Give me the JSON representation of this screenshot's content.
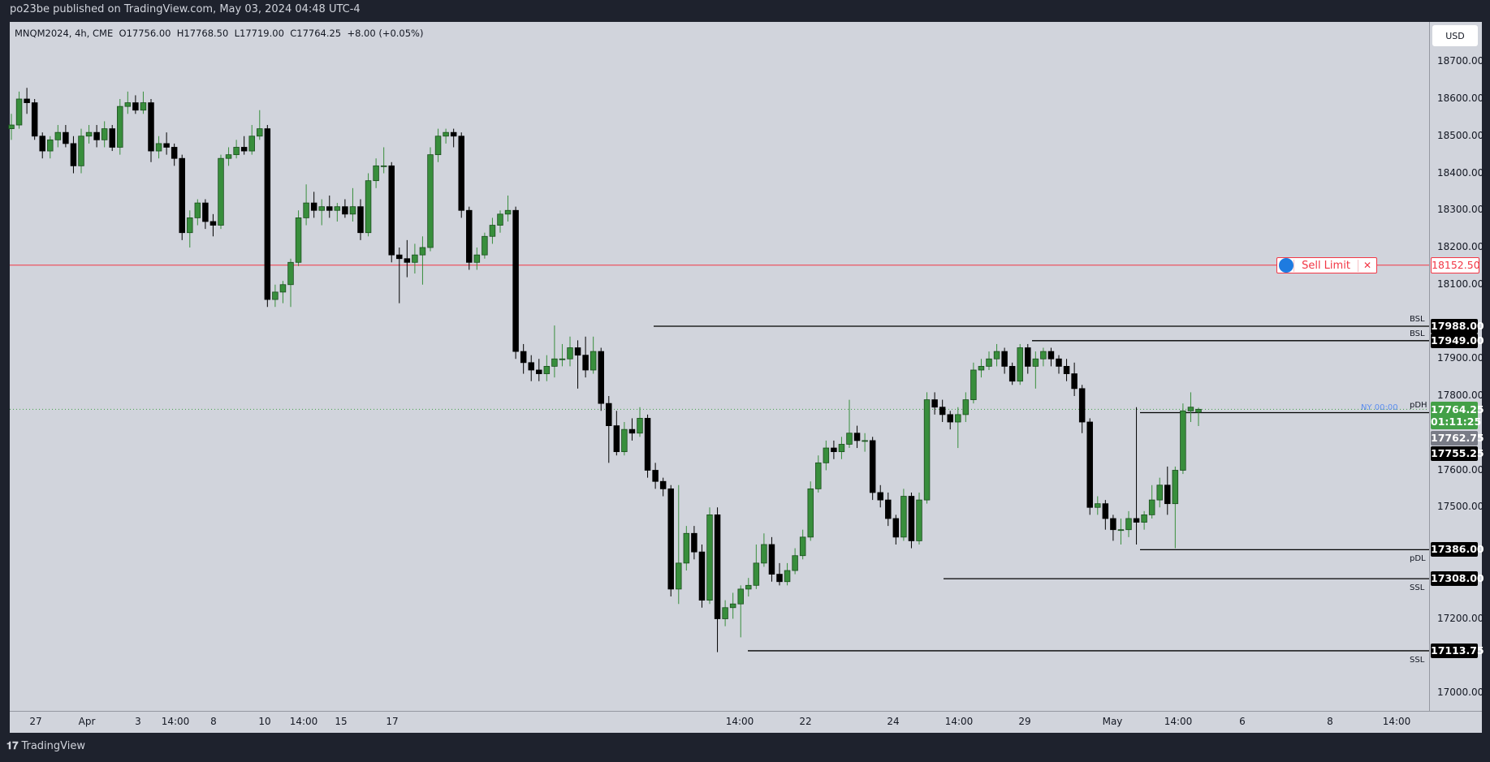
{
  "header": {
    "published": "po23be published on TradingView.com, May 03, 2024 04:48 UTC-4"
  },
  "legend": {
    "symbol": "MNQM2024, 4h, CME",
    "open": "O17756.00",
    "high": "H17768.50",
    "low": "L17719.00",
    "close": "C17764.25",
    "change": "+8.00 (+0.05%)"
  },
  "currency": "USD",
  "order": {
    "label": "Sell Limit",
    "price": "18152.50",
    "close_glyph": "✕",
    "color": "#f23645"
  },
  "badges": {
    "last": "17764.25",
    "countdown": "01:11:25",
    "gray": "17762.75",
    "pdh": "17755.25"
  },
  "annotation": {
    "ny": "NY 00:00"
  },
  "footer": {
    "brand": "TradingView"
  },
  "colors": {
    "up": "#388e3c",
    "down": "#000000",
    "background": "#d1d4dc",
    "order": "#f23645",
    "current": "#43a047"
  },
  "chart_data": {
    "type": "candlestick",
    "symbol": "MNQM2024",
    "interval": "4h",
    "ylim": [
      16950,
      18780
    ],
    "y_ticks": [
      "18700.00",
      "18600.00",
      "18500.00",
      "18400.00",
      "18300.00",
      "18200.00",
      "18100.00",
      "17900.00",
      "17800.00",
      "17600.00",
      "17500.00",
      "17200.00",
      "17000.00"
    ],
    "x_ticks": [
      "27",
      "Apr",
      "3",
      "14:00",
      "8",
      "10",
      "14:00",
      "15",
      "17",
      "14:00",
      "22",
      "24",
      "14:00",
      "29",
      "May",
      "14:00",
      "6",
      "8",
      "14:00"
    ],
    "levels": [
      {
        "label": "BSL",
        "price": 17988.0,
        "text": "17988.00"
      },
      {
        "label": "BSL",
        "price": 17949.0,
        "text": "17949.00"
      },
      {
        "label": "pDH",
        "price": 17755.25,
        "text": "17755.25"
      },
      {
        "label": "pDL",
        "price": 17386.0,
        "text": "17386.00"
      },
      {
        "label": "SSL",
        "price": 17308.0,
        "text": "17308.00"
      },
      {
        "label": "SSL",
        "price": 17113.75,
        "text": "17113.75"
      }
    ],
    "sell_limit": 18152.5,
    "last_price": 17764.25,
    "candles": [
      [
        18520,
        18560,
        18490,
        18530
      ],
      [
        18530,
        18620,
        18520,
        18600
      ],
      [
        18600,
        18630,
        18560,
        18590
      ],
      [
        18590,
        18600,
        18490,
        18500
      ],
      [
        18500,
        18510,
        18440,
        18460
      ],
      [
        18460,
        18500,
        18440,
        18490
      ],
      [
        18490,
        18530,
        18470,
        18510
      ],
      [
        18510,
        18530,
        18470,
        18480
      ],
      [
        18480,
        18500,
        18400,
        18420
      ],
      [
        18420,
        18520,
        18400,
        18500
      ],
      [
        18500,
        18530,
        18480,
        18510
      ],
      [
        18510,
        18530,
        18470,
        18490
      ],
      [
        18490,
        18540,
        18470,
        18520
      ],
      [
        18520,
        18530,
        18460,
        18470
      ],
      [
        18470,
        18600,
        18450,
        18580
      ],
      [
        18580,
        18620,
        18560,
        18590
      ],
      [
        18590,
        18610,
        18560,
        18570
      ],
      [
        18570,
        18620,
        18560,
        18590
      ],
      [
        18590,
        18600,
        18430,
        18460
      ],
      [
        18460,
        18500,
        18440,
        18480
      ],
      [
        18480,
        18510,
        18450,
        18470
      ],
      [
        18470,
        18480,
        18420,
        18440
      ],
      [
        18440,
        18450,
        18220,
        18240
      ],
      [
        18240,
        18300,
        18200,
        18280
      ],
      [
        18280,
        18330,
        18260,
        18320
      ],
      [
        18320,
        18330,
        18250,
        18270
      ],
      [
        18270,
        18290,
        18230,
        18260
      ],
      [
        18260,
        18450,
        18250,
        18440
      ],
      [
        18440,
        18470,
        18420,
        18450
      ],
      [
        18450,
        18490,
        18440,
        18470
      ],
      [
        18470,
        18500,
        18450,
        18460
      ],
      [
        18460,
        18530,
        18450,
        18500
      ],
      [
        18500,
        18570,
        18490,
        18520
      ],
      [
        18520,
        18530,
        18040,
        18060
      ],
      [
        18060,
        18100,
        18040,
        18080
      ],
      [
        18080,
        18110,
        18050,
        18100
      ],
      [
        18100,
        18170,
        18040,
        18160
      ],
      [
        18160,
        18300,
        18150,
        18280
      ],
      [
        18280,
        18370,
        18260,
        18320
      ],
      [
        18320,
        18350,
        18280,
        18300
      ],
      [
        18300,
        18330,
        18260,
        18310
      ],
      [
        18310,
        18340,
        18280,
        18300
      ],
      [
        18300,
        18320,
        18270,
        18310
      ],
      [
        18310,
        18330,
        18280,
        18290
      ],
      [
        18290,
        18360,
        18270,
        18310
      ],
      [
        18310,
        18330,
        18220,
        18240
      ],
      [
        18240,
        18400,
        18230,
        18380
      ],
      [
        18380,
        18440,
        18360,
        18420
      ],
      [
        18420,
        18470,
        18400,
        18420
      ],
      [
        18420,
        18430,
        18160,
        18180
      ],
      [
        18180,
        18200,
        18050,
        18170
      ],
      [
        18170,
        18220,
        18120,
        18160
      ],
      [
        18160,
        18210,
        18130,
        18180
      ],
      [
        18180,
        18230,
        18100,
        18200
      ],
      [
        18200,
        18470,
        18190,
        18450
      ],
      [
        18450,
        18520,
        18430,
        18500
      ],
      [
        18500,
        18520,
        18480,
        18510
      ],
      [
        18510,
        18520,
        18470,
        18500
      ],
      [
        18500,
        18510,
        18280,
        18300
      ],
      [
        18300,
        18310,
        18140,
        18160
      ],
      [
        18160,
        18200,
        18140,
        18180
      ],
      [
        18180,
        18240,
        18170,
        18230
      ],
      [
        18230,
        18280,
        18210,
        18260
      ],
      [
        18260,
        18300,
        18240,
        18290
      ],
      [
        18290,
        18340,
        18270,
        18300
      ],
      [
        18300,
        18310,
        17900,
        17920
      ],
      [
        17920,
        17940,
        17860,
        17890
      ],
      [
        17890,
        17910,
        17840,
        17870
      ],
      [
        17870,
        17900,
        17840,
        17860
      ],
      [
        17860,
        17910,
        17840,
        17880
      ],
      [
        17880,
        17990,
        17850,
        17900
      ],
      [
        17900,
        17940,
        17880,
        17900
      ],
      [
        17900,
        17960,
        17880,
        17930
      ],
      [
        17930,
        17950,
        17820,
        17910
      ],
      [
        17910,
        17960,
        17850,
        17870
      ],
      [
        17870,
        17960,
        17860,
        17920
      ],
      [
        17920,
        17930,
        17760,
        17780
      ],
      [
        17780,
        17800,
        17620,
        17720
      ],
      [
        17720,
        17760,
        17640,
        17650
      ],
      [
        17650,
        17730,
        17640,
        17710
      ],
      [
        17710,
        17740,
        17680,
        17700
      ],
      [
        17700,
        17770,
        17690,
        17740
      ],
      [
        17740,
        17750,
        17580,
        17600
      ],
      [
        17600,
        17620,
        17550,
        17570
      ],
      [
        17570,
        17580,
        17530,
        17550
      ],
      [
        17550,
        17560,
        17260,
        17280
      ],
      [
        17280,
        17560,
        17240,
        17350
      ],
      [
        17350,
        17450,
        17330,
        17430
      ],
      [
        17430,
        17450,
        17360,
        17380
      ],
      [
        17380,
        17400,
        17230,
        17250
      ],
      [
        17250,
        17500,
        17240,
        17480
      ],
      [
        17480,
        17500,
        17110,
        17200
      ],
      [
        17200,
        17250,
        17180,
        17230
      ],
      [
        17230,
        17270,
        17200,
        17240
      ],
      [
        17240,
        17290,
        17150,
        17280
      ],
      [
        17280,
        17310,
        17260,
        17290
      ],
      [
        17290,
        17400,
        17280,
        17350
      ],
      [
        17350,
        17430,
        17340,
        17400
      ],
      [
        17400,
        17420,
        17300,
        17320
      ],
      [
        17320,
        17350,
        17290,
        17300
      ],
      [
        17300,
        17350,
        17290,
        17330
      ],
      [
        17330,
        17390,
        17320,
        17370
      ],
      [
        17370,
        17440,
        17360,
        17420
      ],
      [
        17420,
        17570,
        17410,
        17550
      ],
      [
        17550,
        17640,
        17540,
        17620
      ],
      [
        17620,
        17680,
        17600,
        17660
      ],
      [
        17660,
        17680,
        17630,
        17650
      ],
      [
        17650,
        17690,
        17630,
        17670
      ],
      [
        17670,
        17790,
        17660,
        17700
      ],
      [
        17700,
        17720,
        17660,
        17680
      ],
      [
        17680,
        17700,
        17650,
        17680
      ],
      [
        17680,
        17690,
        17520,
        17540
      ],
      [
        17540,
        17560,
        17500,
        17520
      ],
      [
        17520,
        17540,
        17450,
        17470
      ],
      [
        17470,
        17480,
        17400,
        17420
      ],
      [
        17420,
        17550,
        17410,
        17530
      ],
      [
        17530,
        17540,
        17390,
        17410
      ],
      [
        17410,
        17540,
        17400,
        17520
      ],
      [
        17520,
        17810,
        17510,
        17790
      ],
      [
        17790,
        17810,
        17750,
        17770
      ],
      [
        17770,
        17790,
        17730,
        17750
      ],
      [
        17750,
        17760,
        17710,
        17730
      ],
      [
        17730,
        17770,
        17660,
        17750
      ],
      [
        17750,
        17810,
        17730,
        17790
      ],
      [
        17790,
        17890,
        17780,
        17870
      ],
      [
        17870,
        17900,
        17850,
        17880
      ],
      [
        17880,
        17920,
        17870,
        17900
      ],
      [
        17900,
        17940,
        17880,
        17920
      ],
      [
        17920,
        17930,
        17860,
        17880
      ],
      [
        17880,
        17890,
        17830,
        17840
      ],
      [
        17840,
        17940,
        17830,
        17930
      ],
      [
        17930,
        17940,
        17860,
        17880
      ],
      [
        17880,
        17920,
        17820,
        17900
      ],
      [
        17900,
        17930,
        17880,
        17920
      ],
      [
        17920,
        17930,
        17880,
        17900
      ],
      [
        17900,
        17910,
        17860,
        17880
      ],
      [
        17880,
        17900,
        17840,
        17860
      ],
      [
        17860,
        17890,
        17800,
        17820
      ],
      [
        17820,
        17830,
        17700,
        17730
      ],
      [
        17730,
        17740,
        17480,
        17500
      ],
      [
        17500,
        17530,
        17480,
        17510
      ],
      [
        17510,
        17520,
        17440,
        17470
      ],
      [
        17470,
        17480,
        17410,
        17440
      ],
      [
        17440,
        17470,
        17400,
        17440
      ],
      [
        17440,
        17490,
        17420,
        17470
      ],
      [
        17470,
        17770,
        17400,
        17460
      ],
      [
        17460,
        17490,
        17440,
        17480
      ],
      [
        17480,
        17560,
        17470,
        17520
      ],
      [
        17520,
        17580,
        17500,
        17560
      ],
      [
        17560,
        17610,
        17480,
        17510
      ],
      [
        17510,
        17610,
        17390,
        17600
      ],
      [
        17600,
        17780,
        17590,
        17760
      ],
      [
        17760,
        17810,
        17730,
        17770
      ],
      [
        17756,
        17768.5,
        17719,
        17764.25
      ]
    ]
  }
}
